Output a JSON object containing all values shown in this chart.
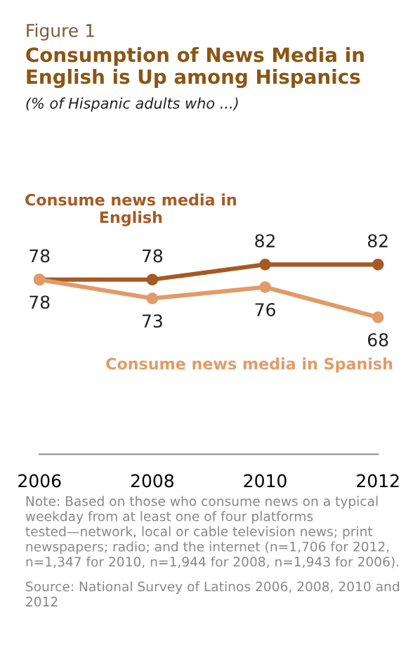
{
  "chart_data": {
    "type": "line",
    "title": "Consumption of News Media in English is Up among Hispanics",
    "subtitle": "(% of Hispanic adults who ...)",
    "categories": [
      "2006",
      "2008",
      "2010",
      "2012"
    ],
    "series": [
      {
        "name": "Consume news media in English",
        "color": "#a65a23",
        "values": [
          78,
          78,
          82,
          82
        ]
      },
      {
        "name": "Consume news media in Spanish",
        "color": "#e19b68",
        "values": [
          78,
          73,
          76,
          68
        ]
      }
    ],
    "data_labels": true,
    "marker": "circle",
    "line_style": "solid",
    "grid": false,
    "legend": false,
    "tick_labels": "x",
    "annotations": [
      "Figure 1",
      "Note: Based on those who consume news on a typical weekday from at least one of four platforms tested—network, local or cable television news; print newspapers; radio; and the internet (n=1,706 for 2012, n=1,347 for 2010, n=1,944 for 2008, n=1,943 for 2006).",
      "Source: National Survey of Latinos 2006, 2008, 2010 and 2012"
    ]
  }
}
